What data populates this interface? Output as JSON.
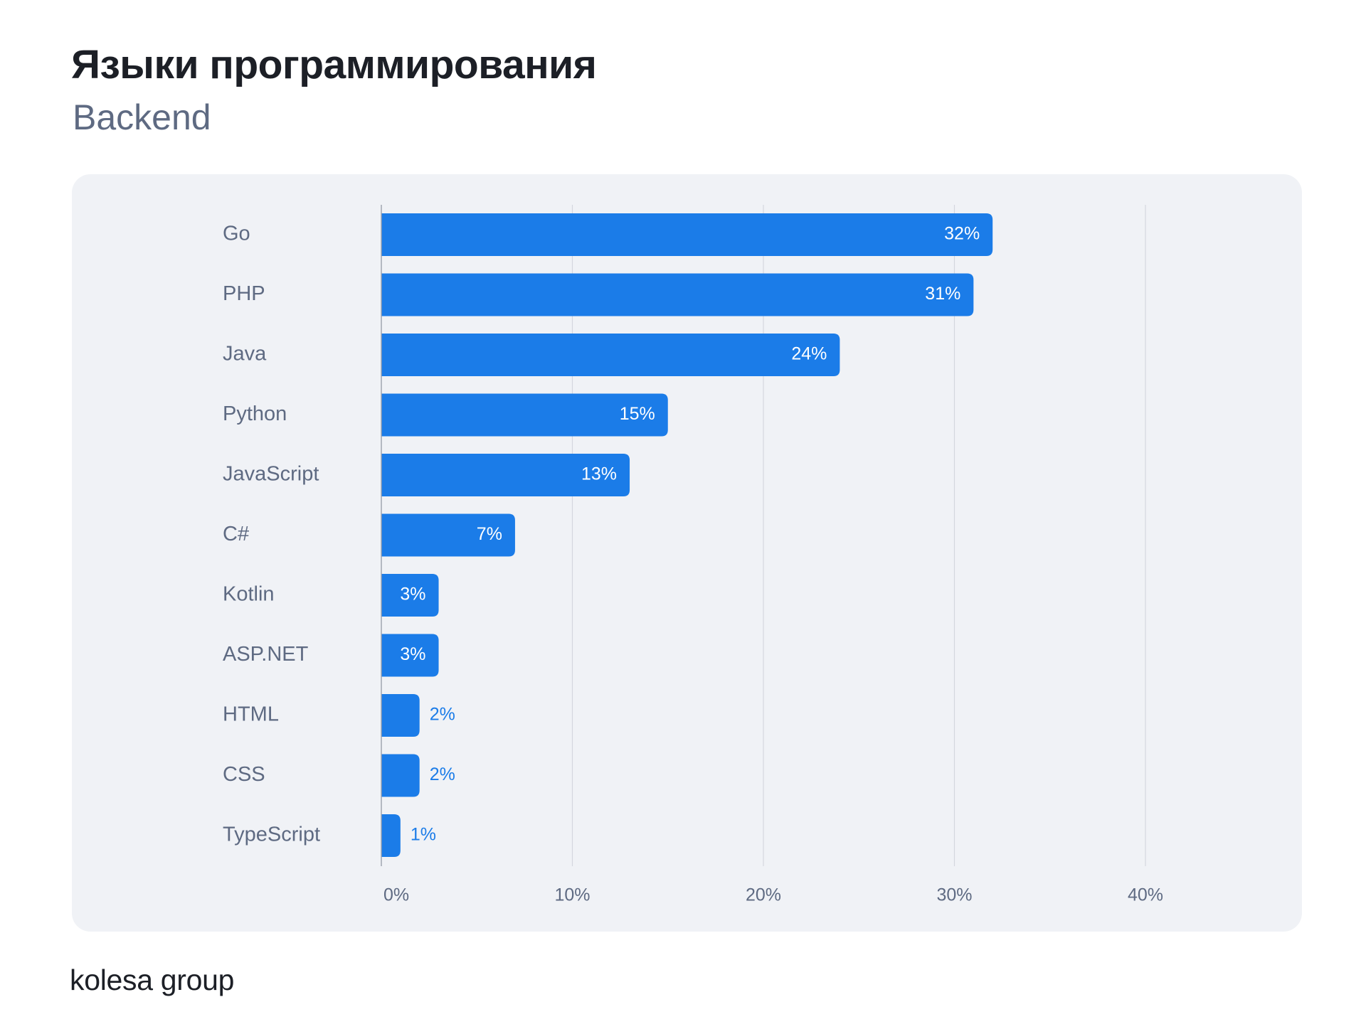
{
  "header": {
    "title": "Языки программирования",
    "subtitle": "Backend"
  },
  "footer": {
    "logo_text": "kolesa group"
  },
  "colors": {
    "bar": "#1b7ce8",
    "label_inside": "#ffffff",
    "label_outside": "#1b7ce8",
    "category_text": "#5e6a82",
    "tick_text": "#5e6a82",
    "grid": "#d4d7de",
    "panel_background": "#f0f2f6"
  },
  "chart_data": {
    "type": "bar",
    "orientation": "horizontal",
    "title": "",
    "xlabel": "",
    "ylabel": "",
    "categories": [
      "Go",
      "PHP",
      "Java",
      "Python",
      "JavaScript",
      "C#",
      "Kotlin",
      "ASP.NET",
      "HTML",
      "CSS",
      "TypeScript"
    ],
    "values": [
      32,
      31,
      24,
      15,
      13,
      7,
      3,
      3,
      2,
      2,
      1
    ],
    "value_labels": [
      "32%",
      "31%",
      "24%",
      "15%",
      "13%",
      "7%",
      "3%",
      "3%",
      "2%",
      "2%",
      "1%"
    ],
    "xlim": [
      0,
      40
    ],
    "xticks": [
      0,
      10,
      20,
      30,
      40
    ],
    "xtick_labels": [
      "0%",
      "10%",
      "20%",
      "30%",
      "40%"
    ],
    "grid": true,
    "legend": "none"
  }
}
